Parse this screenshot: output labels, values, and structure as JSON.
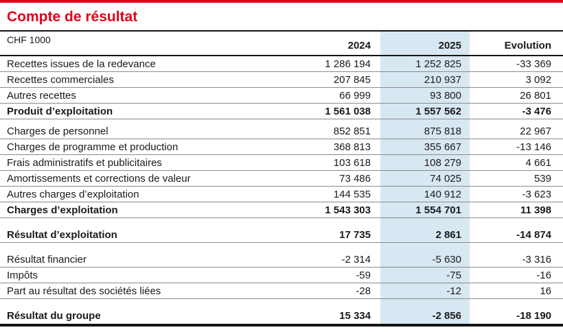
{
  "title": "Compte de résultat",
  "table": {
    "unit_label": "CHF 1000",
    "columns": [
      "2024",
      "2025",
      "Evolution"
    ],
    "highlight_column": "2025",
    "colors": {
      "accent_red": "#e2001a",
      "highlight_blue": "#d8e8f2"
    },
    "rows": [
      {
        "label": "Recettes issues de la redevance",
        "v2024": "1 286 194",
        "v2025": "1 252 825",
        "evolution": "-33 369",
        "bold": false
      },
      {
        "label": "Recettes commerciales",
        "v2024": "207 845",
        "v2025": "210 937",
        "evolution": "3 092",
        "bold": false
      },
      {
        "label": "Autres recettes",
        "v2024": "66 999",
        "v2025": "93 800",
        "evolution": "26 801",
        "bold": false
      },
      {
        "label": "Produit d’exploitation",
        "v2024": "1 561 038",
        "v2025": "1 557 562",
        "evolution": "-3 476",
        "bold": true
      },
      {
        "type": "spacer",
        "size": "sm"
      },
      {
        "label": "Charges de personnel",
        "v2024": "852 851",
        "v2025": "875 818",
        "evolution": "22 967",
        "bold": false
      },
      {
        "label": "Charges de programme et production",
        "v2024": "368 813",
        "v2025": "355 667",
        "evolution": "-13 146",
        "bold": false
      },
      {
        "label": "Frais administratifs et publicitaires",
        "v2024": "103 618",
        "v2025": "108 279",
        "evolution": "4 661",
        "bold": false
      },
      {
        "label": "Amortissements et corrections de valeur",
        "v2024": "73 486",
        "v2025": "74 025",
        "evolution": "539",
        "bold": false
      },
      {
        "label": "Autres charges d’exploitation",
        "v2024": "144 535",
        "v2025": "140 912",
        "evolution": "-3 623",
        "bold": false
      },
      {
        "label": "Charges d’exploitation",
        "v2024": "1 543 303",
        "v2025": "1 554 701",
        "evolution": "11 398",
        "bold": true
      },
      {
        "type": "spacer",
        "size": "lg"
      },
      {
        "label": "Résultat d’exploitation",
        "v2024": "17 735",
        "v2025": "2 861",
        "evolution": "-14 874",
        "bold": true
      },
      {
        "type": "spacer",
        "size": "lg"
      },
      {
        "label": "Résultat financier",
        "v2024": "-2 314",
        "v2025": "-5 630",
        "evolution": "-3 316",
        "bold": false
      },
      {
        "label": "Impôts",
        "v2024": "-59",
        "v2025": "-75",
        "evolution": "-16",
        "bold": false
      },
      {
        "label": "Part au résultat des sociétés liées",
        "v2024": "-28",
        "v2025": "-12",
        "evolution": "16",
        "bold": false
      },
      {
        "type": "spacer",
        "size": "lg"
      },
      {
        "label": "Résultat du groupe",
        "v2024": "15 334",
        "v2025": "-2 856",
        "evolution": "-18 190",
        "bold": true
      }
    ]
  }
}
